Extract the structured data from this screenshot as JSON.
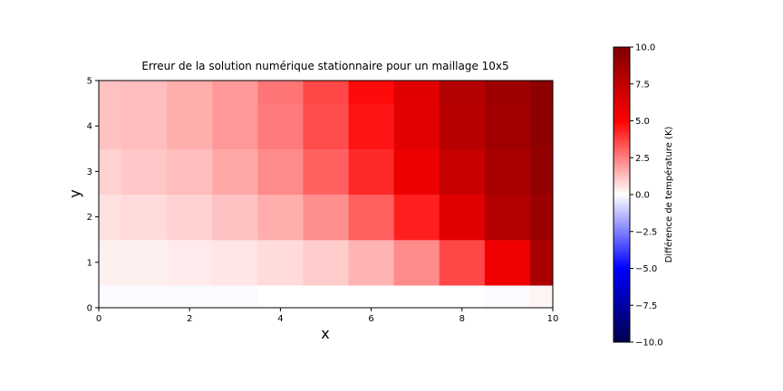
{
  "chart_data": {
    "type": "heatmap",
    "title": "Erreur de la solution numérique stationnaire pour un maillage 10x5",
    "xlabel": "x",
    "ylabel": "y",
    "xlim": [
      0,
      10
    ],
    "ylim": [
      0,
      5
    ],
    "grid": false,
    "colormap": "seismic",
    "nx": 11,
    "ny": 6,
    "x_ticks": [
      0,
      2,
      4,
      6,
      8,
      10
    ],
    "x_tick_labels": [
      "0",
      "2",
      "4",
      "6",
      "8",
      "10"
    ],
    "y_ticks": [
      0,
      1,
      2,
      3,
      4,
      5
    ],
    "y_tick_labels": [
      "0",
      "1",
      "2",
      "3",
      "4",
      "5"
    ],
    "values": [
      [
        -0.1,
        -0.1,
        -0.1,
        -0.1,
        0.0,
        0.0,
        0.0,
        0.0,
        0.0,
        -0.1,
        0.2
      ],
      [
        0.3,
        0.3,
        0.4,
        0.5,
        0.7,
        1.0,
        1.5,
        2.3,
        3.6,
        5.6,
        8.3
      ],
      [
        0.6,
        0.7,
        0.9,
        1.2,
        1.6,
        2.2,
        3.1,
        4.4,
        6.2,
        8.0,
        8.9
      ],
      [
        0.9,
        1.1,
        1.3,
        1.7,
        2.3,
        3.1,
        4.2,
        5.7,
        7.2,
        8.4,
        9.2
      ],
      [
        1.2,
        1.3,
        1.6,
        2.0,
        2.6,
        3.5,
        4.6,
        6.1,
        7.8,
        8.7,
        9.4
      ],
      [
        1.2,
        1.3,
        1.6,
        2.0,
        2.7,
        3.6,
        4.8,
        6.2,
        8.0,
        8.8,
        9.5
      ]
    ],
    "colorbar": {
      "label": "Différence de température (K)",
      "min": -10.0,
      "max": 10.0,
      "ticks": [
        -10.0,
        -7.5,
        -5.0,
        -2.5,
        0.0,
        2.5,
        5.0,
        7.5,
        10.0
      ],
      "tick_labels": [
        "−10.0",
        "−7.5",
        "−5.0",
        "−2.5",
        "0.0",
        "2.5",
        "5.0",
        "7.5",
        "10.0"
      ]
    }
  }
}
